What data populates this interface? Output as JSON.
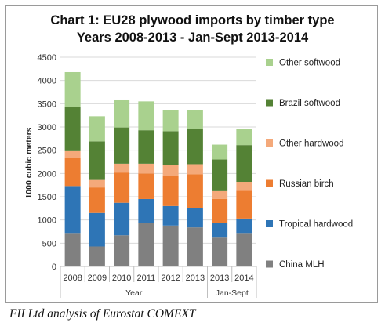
{
  "caption": "FII Ltd analysis of Eurostat COMEXT",
  "chart_data": {
    "type": "bar",
    "stacked": true,
    "title": "Chart 1: EU28 plywood imports by timber type",
    "subtitle": "Years 2008-2013 - Jan-Sept 2013-2014",
    "ylabel": "1000 cubic meters",
    "ylim": [
      0,
      4500
    ],
    "yticks": [
      0,
      500,
      1000,
      1500,
      2000,
      2500,
      3000,
      3500,
      4000,
      4500
    ],
    "categories": [
      "2008",
      "2009",
      "2010",
      "2011",
      "2012",
      "2013",
      "2013",
      "2014"
    ],
    "category_groups": [
      {
        "label": "Year",
        "span": 6
      },
      {
        "label": "Jan-Sept",
        "span": 2
      }
    ],
    "legend_position": "right",
    "grid": true,
    "series": [
      {
        "name": "China MLH",
        "color": "#808080",
        "values": [
          720,
          430,
          670,
          940,
          880,
          840,
          620,
          720
        ]
      },
      {
        "name": "Tropical hardwood",
        "color": "#2e75b6",
        "values": [
          1010,
          720,
          700,
          510,
          420,
          420,
          310,
          310
        ]
      },
      {
        "name": "Russian birch",
        "color": "#ed7d31",
        "values": [
          600,
          550,
          650,
          550,
          650,
          720,
          520,
          600
        ]
      },
      {
        "name": "Other hardwood",
        "color": "#f4a97a",
        "values": [
          150,
          160,
          190,
          210,
          230,
          220,
          170,
          190
        ]
      },
      {
        "name": "Brazil softwood",
        "color": "#548235",
        "values": [
          950,
          830,
          780,
          720,
          730,
          750,
          680,
          790
        ]
      },
      {
        "name": "Other softwood",
        "color": "#a9d18e",
        "values": [
          750,
          540,
          600,
          620,
          460,
          420,
          320,
          350
        ]
      }
    ]
  }
}
